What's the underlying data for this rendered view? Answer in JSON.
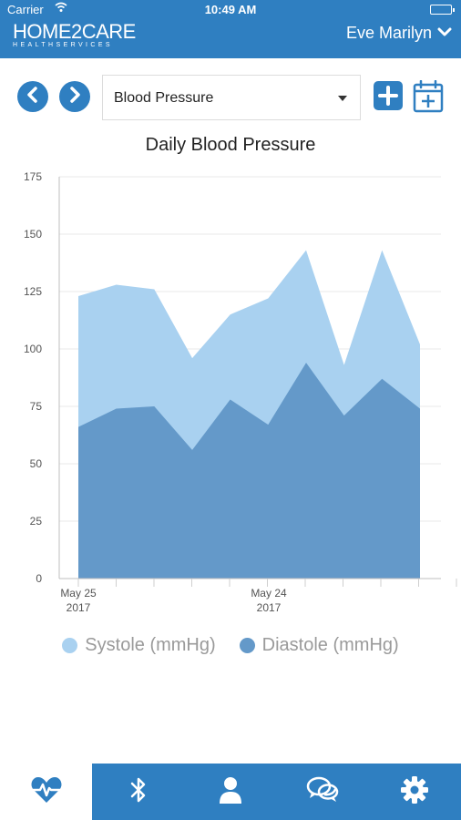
{
  "status_bar": {
    "carrier": "Carrier",
    "time": "10:49 AM"
  },
  "header": {
    "logo_main": "HOME2CARE",
    "logo_sub": "HEALTHSERVICES",
    "user_name": "Eve Marilyn"
  },
  "toolbar": {
    "metric_selected": "Blood Pressure"
  },
  "colors": {
    "brand_blue": "#2f7fc1",
    "systole_fill": "#a9d1f0",
    "diastole_fill": "#6499c9"
  },
  "icons": {
    "back": "chevron-left-icon",
    "forward": "chevron-right-icon",
    "add": "plus-square-icon",
    "calendar_add": "calendar-plus-icon",
    "tabs": [
      "heart-pulse-icon",
      "bluetooth-icon",
      "user-icon",
      "chat-icon",
      "gear-icon"
    ]
  },
  "chart_data": {
    "type": "area",
    "title": "Daily Blood Pressure",
    "ylim": [
      0,
      175
    ],
    "y_ticks": [
      "0",
      "25",
      "50",
      "75",
      "100",
      "125",
      "150",
      "175"
    ],
    "x_tick_labels": [
      {
        "line1": "May 25",
        "line2": "2017"
      },
      {
        "line1": "May 24",
        "line2": "2017"
      }
    ],
    "grid": "horizontal",
    "legend_position": "bottom",
    "series": [
      {
        "name": "Systole (mmHg)",
        "values": [
          123,
          128,
          126,
          96,
          115,
          122,
          143,
          93,
          143,
          102
        ]
      },
      {
        "name": "Diastole (mmHg)",
        "values": [
          66,
          74,
          75,
          56,
          78,
          67,
          94,
          71,
          87,
          74
        ]
      }
    ]
  }
}
